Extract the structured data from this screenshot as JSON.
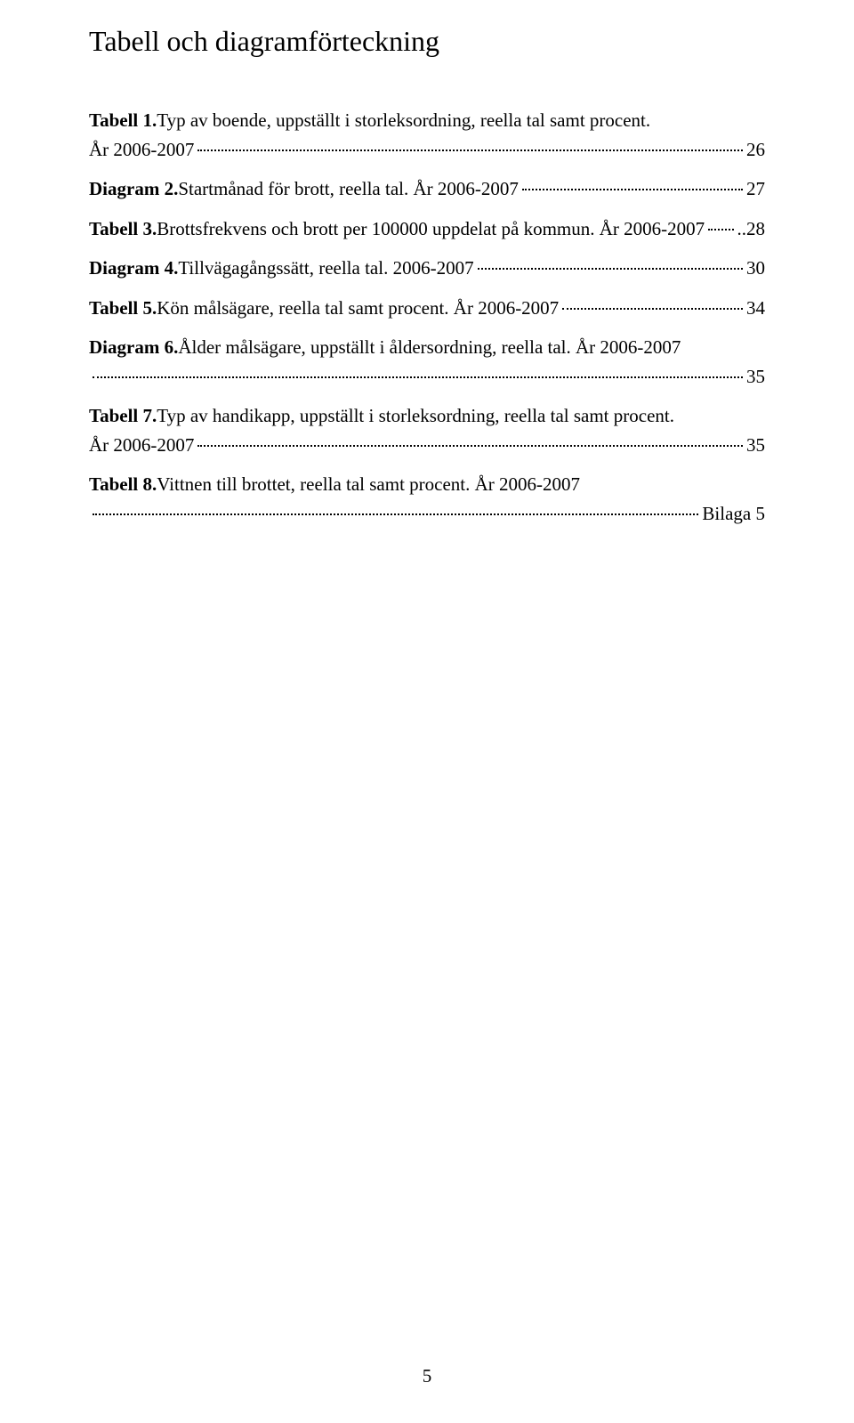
{
  "title": "Tabell och diagramförteckning",
  "entries": [
    {
      "label": "Tabell 1.",
      "lines": [
        {
          "pre": " Typ av boende, uppställt i storleksordning, reella tal samt procent."
        },
        {
          "pre": " År 2006-2007",
          "page": "26"
        }
      ]
    },
    {
      "label": "Diagram 2.",
      "lines": [
        {
          "pre": "  Startmånad för brott, reella tal. År 2006-2007",
          "page": "27"
        }
      ]
    },
    {
      "label": "Tabell 3.",
      "lines": [
        {
          "pre": "  Brottsfrekvens och brott per 100000 uppdelat på kommun. År 2006-2007",
          "page": "..28"
        }
      ]
    },
    {
      "label": "Diagram 4.",
      "lines": [
        {
          "pre": "  Tillvägagångssätt, reella tal. 2006-2007",
          "page": "30"
        }
      ]
    },
    {
      "label": "Tabell 5.",
      "lines": [
        {
          "pre": " Kön målsägare, reella tal samt procent. År 2006-2007",
          "page": "34"
        }
      ]
    },
    {
      "label": "Diagram 6.",
      "lines": [
        {
          "pre": "  Ålder målsägare, uppställt i åldersordning, reella tal. År 2006-2007"
        },
        {
          "pre": "",
          "page": "35"
        }
      ]
    },
    {
      "label": "Tabell 7.",
      "lines": [
        {
          "pre": "  Typ av handikapp, uppställt i storleksordning, reella tal samt procent."
        },
        {
          "pre": "År 2006-2007",
          "page": "35"
        }
      ]
    },
    {
      "label": "Tabell 8.",
      "lines": [
        {
          "pre": " Vittnen till brottet, reella tal samt procent. År 2006-2007"
        },
        {
          "pre": "",
          "page": "Bilaga 5"
        }
      ]
    }
  ],
  "page_number": "5"
}
